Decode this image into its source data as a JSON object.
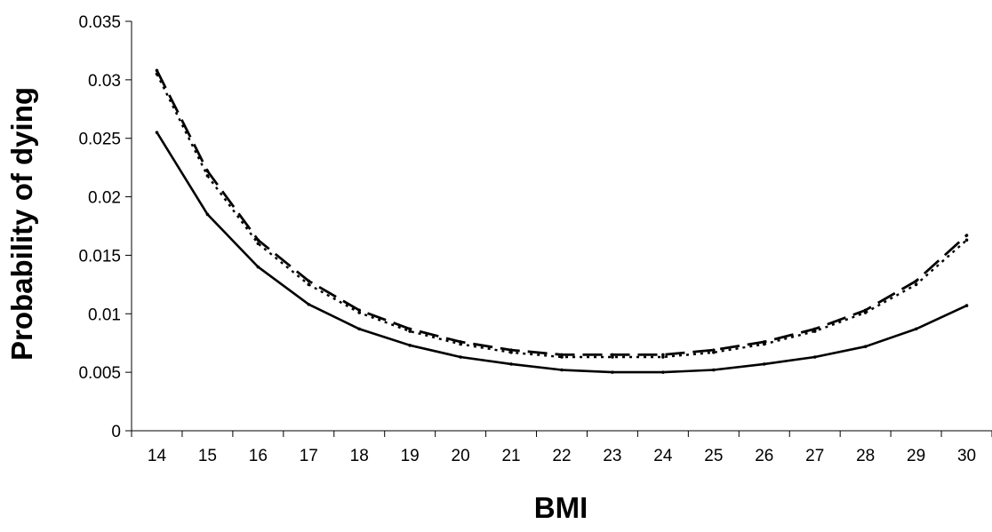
{
  "chart_data": {
    "type": "line",
    "xlabel": "BMI",
    "ylabel": "Probability of dying",
    "x": [
      14,
      15,
      16,
      17,
      18,
      19,
      20,
      21,
      22,
      23,
      24,
      25,
      26,
      27,
      28,
      29,
      30
    ],
    "xlim": [
      13.5,
      30.5
    ],
    "ylim": [
      0,
      0.035
    ],
    "y_ticks": [
      "0",
      "0.005",
      "0.01",
      "0.015",
      "0.02",
      "0.025",
      "0.03",
      "0.035"
    ],
    "grid": false,
    "legend": "none",
    "series": [
      {
        "style": "solid",
        "color": "#000000",
        "values": [
          0.0255,
          0.0185,
          0.014,
          0.0108,
          0.0087,
          0.0073,
          0.0063,
          0.0057,
          0.0052,
          0.005,
          0.005,
          0.0052,
          0.0057,
          0.0063,
          0.0072,
          0.0087,
          0.0107
        ]
      },
      {
        "style": "dashed",
        "color": "#000000",
        "values": [
          0.0308,
          0.0222,
          0.0163,
          0.0128,
          0.0103,
          0.0087,
          0.0076,
          0.0069,
          0.0065,
          0.0065,
          0.0065,
          0.0069,
          0.0076,
          0.0087,
          0.0103,
          0.0128,
          0.0167
        ]
      },
      {
        "style": "dotted",
        "color": "#000000",
        "values": [
          0.0305,
          0.0218,
          0.016,
          0.0125,
          0.0101,
          0.0085,
          0.0074,
          0.0067,
          0.0063,
          0.0063,
          0.0063,
          0.0067,
          0.0074,
          0.0085,
          0.0101,
          0.0125,
          0.0163
        ]
      }
    ]
  }
}
